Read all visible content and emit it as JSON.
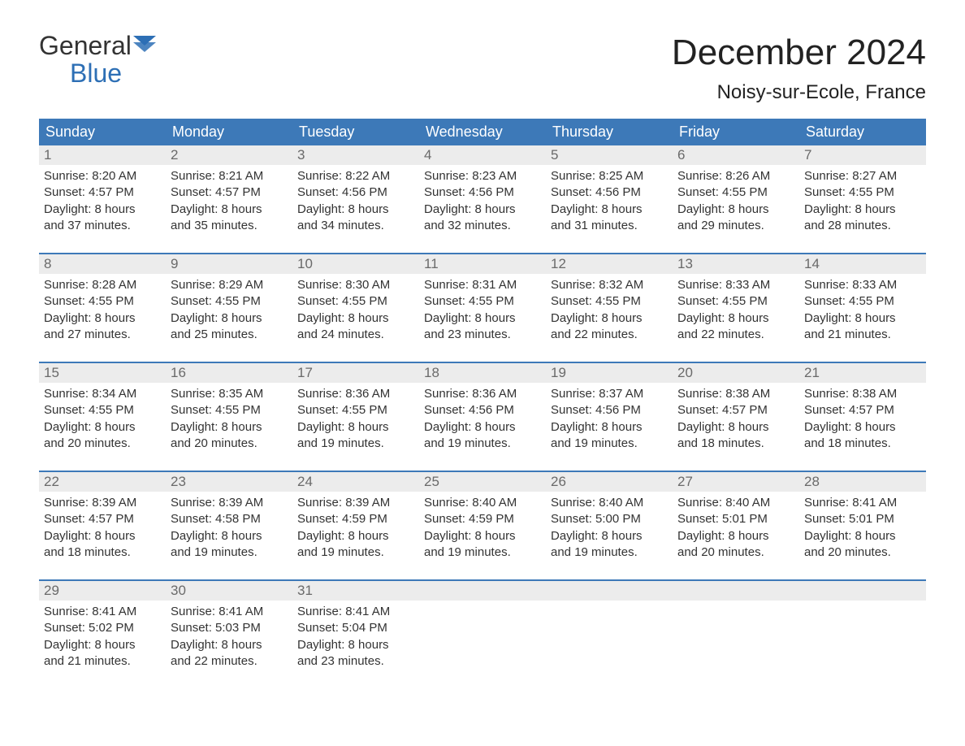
{
  "logo": {
    "top": "General",
    "bottom": "Blue"
  },
  "title": "December 2024",
  "location": "Noisy-sur-Ecole, France",
  "colors": {
    "header_bg": "#3d79b8",
    "header_text": "#ffffff",
    "week_border": "#3d79b8",
    "daynum_bg": "#ececec",
    "daynum_text": "#6a6a6a",
    "body_text": "#333333",
    "logo_blue": "#2d6fb5",
    "page_bg": "#ffffff"
  },
  "typography": {
    "title_fontsize": 44,
    "location_fontsize": 24,
    "dayheader_fontsize": 18,
    "daynum_fontsize": 17,
    "cell_fontsize": 15,
    "logo_fontsize": 32
  },
  "layout": {
    "columns": 7,
    "rows": 5,
    "start_weekday": "Sunday"
  },
  "day_names": [
    "Sunday",
    "Monday",
    "Tuesday",
    "Wednesday",
    "Thursday",
    "Friday",
    "Saturday"
  ],
  "weeks": [
    [
      {
        "num": "1",
        "sunrise": "Sunrise: 8:20 AM",
        "sunset": "Sunset: 4:57 PM",
        "d1": "Daylight: 8 hours",
        "d2": "and 37 minutes."
      },
      {
        "num": "2",
        "sunrise": "Sunrise: 8:21 AM",
        "sunset": "Sunset: 4:57 PM",
        "d1": "Daylight: 8 hours",
        "d2": "and 35 minutes."
      },
      {
        "num": "3",
        "sunrise": "Sunrise: 8:22 AM",
        "sunset": "Sunset: 4:56 PM",
        "d1": "Daylight: 8 hours",
        "d2": "and 34 minutes."
      },
      {
        "num": "4",
        "sunrise": "Sunrise: 8:23 AM",
        "sunset": "Sunset: 4:56 PM",
        "d1": "Daylight: 8 hours",
        "d2": "and 32 minutes."
      },
      {
        "num": "5",
        "sunrise": "Sunrise: 8:25 AM",
        "sunset": "Sunset: 4:56 PM",
        "d1": "Daylight: 8 hours",
        "d2": "and 31 minutes."
      },
      {
        "num": "6",
        "sunrise": "Sunrise: 8:26 AM",
        "sunset": "Sunset: 4:55 PM",
        "d1": "Daylight: 8 hours",
        "d2": "and 29 minutes."
      },
      {
        "num": "7",
        "sunrise": "Sunrise: 8:27 AM",
        "sunset": "Sunset: 4:55 PM",
        "d1": "Daylight: 8 hours",
        "d2": "and 28 minutes."
      }
    ],
    [
      {
        "num": "8",
        "sunrise": "Sunrise: 8:28 AM",
        "sunset": "Sunset: 4:55 PM",
        "d1": "Daylight: 8 hours",
        "d2": "and 27 minutes."
      },
      {
        "num": "9",
        "sunrise": "Sunrise: 8:29 AM",
        "sunset": "Sunset: 4:55 PM",
        "d1": "Daylight: 8 hours",
        "d2": "and 25 minutes."
      },
      {
        "num": "10",
        "sunrise": "Sunrise: 8:30 AM",
        "sunset": "Sunset: 4:55 PM",
        "d1": "Daylight: 8 hours",
        "d2": "and 24 minutes."
      },
      {
        "num": "11",
        "sunrise": "Sunrise: 8:31 AM",
        "sunset": "Sunset: 4:55 PM",
        "d1": "Daylight: 8 hours",
        "d2": "and 23 minutes."
      },
      {
        "num": "12",
        "sunrise": "Sunrise: 8:32 AM",
        "sunset": "Sunset: 4:55 PM",
        "d1": "Daylight: 8 hours",
        "d2": "and 22 minutes."
      },
      {
        "num": "13",
        "sunrise": "Sunrise: 8:33 AM",
        "sunset": "Sunset: 4:55 PM",
        "d1": "Daylight: 8 hours",
        "d2": "and 22 minutes."
      },
      {
        "num": "14",
        "sunrise": "Sunrise: 8:33 AM",
        "sunset": "Sunset: 4:55 PM",
        "d1": "Daylight: 8 hours",
        "d2": "and 21 minutes."
      }
    ],
    [
      {
        "num": "15",
        "sunrise": "Sunrise: 8:34 AM",
        "sunset": "Sunset: 4:55 PM",
        "d1": "Daylight: 8 hours",
        "d2": "and 20 minutes."
      },
      {
        "num": "16",
        "sunrise": "Sunrise: 8:35 AM",
        "sunset": "Sunset: 4:55 PM",
        "d1": "Daylight: 8 hours",
        "d2": "and 20 minutes."
      },
      {
        "num": "17",
        "sunrise": "Sunrise: 8:36 AM",
        "sunset": "Sunset: 4:55 PM",
        "d1": "Daylight: 8 hours",
        "d2": "and 19 minutes."
      },
      {
        "num": "18",
        "sunrise": "Sunrise: 8:36 AM",
        "sunset": "Sunset: 4:56 PM",
        "d1": "Daylight: 8 hours",
        "d2": "and 19 minutes."
      },
      {
        "num": "19",
        "sunrise": "Sunrise: 8:37 AM",
        "sunset": "Sunset: 4:56 PM",
        "d1": "Daylight: 8 hours",
        "d2": "and 19 minutes."
      },
      {
        "num": "20",
        "sunrise": "Sunrise: 8:38 AM",
        "sunset": "Sunset: 4:57 PM",
        "d1": "Daylight: 8 hours",
        "d2": "and 18 minutes."
      },
      {
        "num": "21",
        "sunrise": "Sunrise: 8:38 AM",
        "sunset": "Sunset: 4:57 PM",
        "d1": "Daylight: 8 hours",
        "d2": "and 18 minutes."
      }
    ],
    [
      {
        "num": "22",
        "sunrise": "Sunrise: 8:39 AM",
        "sunset": "Sunset: 4:57 PM",
        "d1": "Daylight: 8 hours",
        "d2": "and 18 minutes."
      },
      {
        "num": "23",
        "sunrise": "Sunrise: 8:39 AM",
        "sunset": "Sunset: 4:58 PM",
        "d1": "Daylight: 8 hours",
        "d2": "and 19 minutes."
      },
      {
        "num": "24",
        "sunrise": "Sunrise: 8:39 AM",
        "sunset": "Sunset: 4:59 PM",
        "d1": "Daylight: 8 hours",
        "d2": "and 19 minutes."
      },
      {
        "num": "25",
        "sunrise": "Sunrise: 8:40 AM",
        "sunset": "Sunset: 4:59 PM",
        "d1": "Daylight: 8 hours",
        "d2": "and 19 minutes."
      },
      {
        "num": "26",
        "sunrise": "Sunrise: 8:40 AM",
        "sunset": "Sunset: 5:00 PM",
        "d1": "Daylight: 8 hours",
        "d2": "and 19 minutes."
      },
      {
        "num": "27",
        "sunrise": "Sunrise: 8:40 AM",
        "sunset": "Sunset: 5:01 PM",
        "d1": "Daylight: 8 hours",
        "d2": "and 20 minutes."
      },
      {
        "num": "28",
        "sunrise": "Sunrise: 8:41 AM",
        "sunset": "Sunset: 5:01 PM",
        "d1": "Daylight: 8 hours",
        "d2": "and 20 minutes."
      }
    ],
    [
      {
        "num": "29",
        "sunrise": "Sunrise: 8:41 AM",
        "sunset": "Sunset: 5:02 PM",
        "d1": "Daylight: 8 hours",
        "d2": "and 21 minutes."
      },
      {
        "num": "30",
        "sunrise": "Sunrise: 8:41 AM",
        "sunset": "Sunset: 5:03 PM",
        "d1": "Daylight: 8 hours",
        "d2": "and 22 minutes."
      },
      {
        "num": "31",
        "sunrise": "Sunrise: 8:41 AM",
        "sunset": "Sunset: 5:04 PM",
        "d1": "Daylight: 8 hours",
        "d2": "and 23 minutes."
      },
      {
        "empty": true
      },
      {
        "empty": true
      },
      {
        "empty": true
      },
      {
        "empty": true
      }
    ]
  ]
}
